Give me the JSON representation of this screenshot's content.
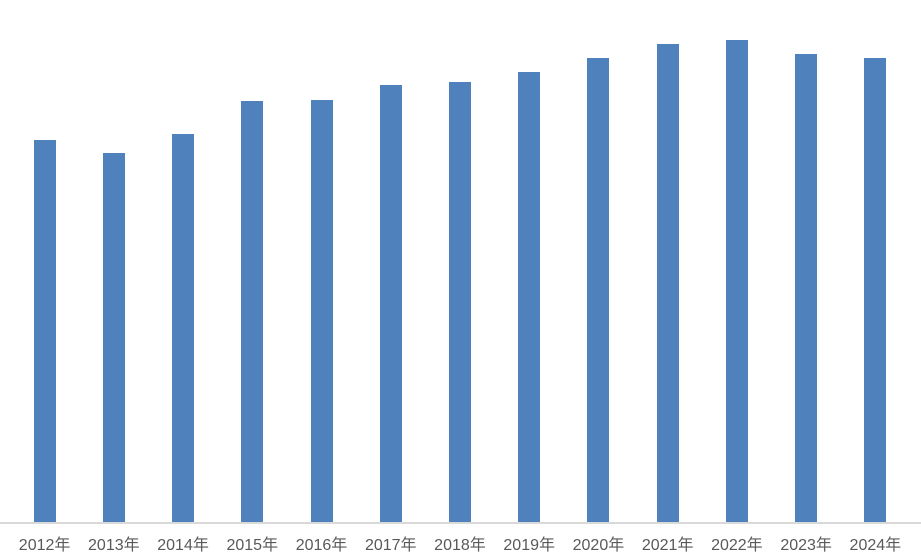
{
  "chart_data": {
    "type": "bar",
    "title": "",
    "xlabel": "",
    "ylabel": "",
    "categories": [
      "2012年",
      "2013年",
      "2014年",
      "2015年",
      "2016年",
      "2017年",
      "2018年",
      "2019年",
      "2020年",
      "2021年",
      "2022年",
      "2023年",
      "2024年"
    ],
    "values": [
      79.3,
      76.6,
      80.5,
      87.4,
      87.6,
      90.7,
      91.3,
      93.4,
      96.3,
      99.2,
      100.0,
      97.1,
      96.3
    ],
    "value_scale": "relative height, tallest bar (2022) = 100; no y-axis or value labels are shown in the image",
    "ylim": [
      0,
      100
    ],
    "bar_color": "#4F81BD",
    "axis_line_color": "#D9D9D9",
    "label_color": "#595959",
    "background_color": "#FFFFFF",
    "gridlines": false,
    "legend": false,
    "y_axis_visible": false
  }
}
